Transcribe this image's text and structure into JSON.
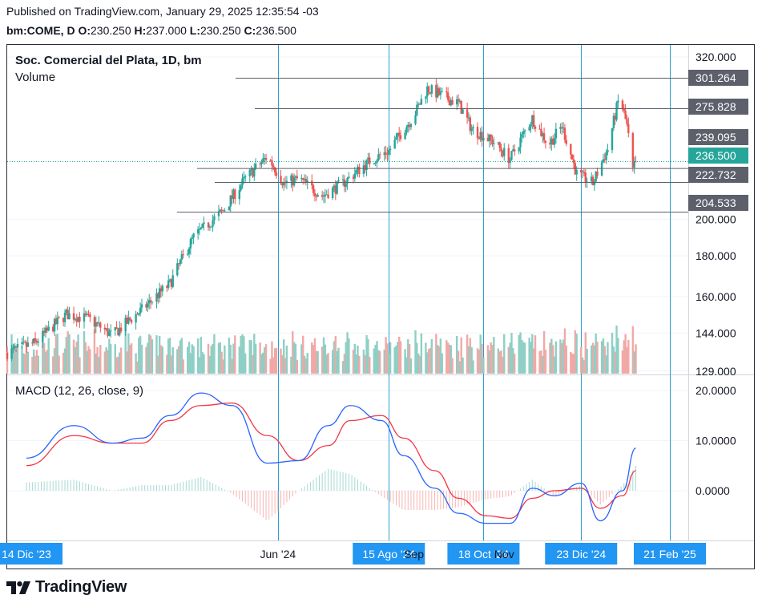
{
  "header": {
    "published": "Published on TradingView.com, January 29, 2025 12:35:54 -03",
    "symbol": "bm:COME, D",
    "ohlc": [
      {
        "k": "O:",
        "v": "230.250"
      },
      {
        "k": "H:",
        "v": "237.000"
      },
      {
        "k": "L:",
        "v": "230.250"
      },
      {
        "k": "C:",
        "v": "236.500"
      }
    ]
  },
  "legend": {
    "title": "Soc. Comercial del Plata, 1D, bm",
    "volume": "Volume",
    "macd": "MACD (12, 26, close, 9)"
  },
  "brand": {
    "name": "TradingView"
  },
  "colors": {
    "up": "#26a69a",
    "down": "#ef5350",
    "vol_up": "#8fcfc5",
    "vol_down": "#f0a9a6",
    "macd": "#2962ff",
    "signal": "#f23645",
    "vline": "#2a9fd0",
    "axis_tag": "#2196f3",
    "price_tag": "#5d606b",
    "last_tag": "#26a69a"
  },
  "chart_data": [
    {
      "type": "candlestick",
      "title": "Soc. Comercial del Plata, 1D, bm",
      "x_range": [
        "2023-12-01",
        "2025-03-01"
      ],
      "price_scale": "log",
      "y_ticks": [
        "320.000",
        "301.264",
        "275.828",
        "239.095",
        "236.500",
        "222.732",
        "204.533",
        "200.000",
        "180.000",
        "160.000",
        "144.000",
        "129.000"
      ],
      "levels": [
        {
          "value": 301.264,
          "label": "301.264"
        },
        {
          "value": 275.828,
          "label": "275.828"
        },
        {
          "value": 239.095,
          "label": "239.095"
        },
        {
          "value": 236.5,
          "label": "236.500",
          "last": true
        },
        {
          "value": 222.732,
          "label": "222.732"
        },
        {
          "value": 204.533,
          "label": "204.533"
        }
      ],
      "x_labels": [
        {
          "label": "14 Dic '23",
          "date": "2023-12-14",
          "tag": true
        },
        {
          "label": "Jun '24",
          "date": "2024-06-01",
          "tag": false
        },
        {
          "label": "15 Ago '24",
          "date": "2024-08-15",
          "tag": true
        },
        {
          "label": "Sep",
          "date": "2024-09-01",
          "tag": false
        },
        {
          "label": "18 Oct '24",
          "date": "2024-10-18",
          "tag": true
        },
        {
          "label": "Nov",
          "date": "2024-11-01",
          "tag": false
        },
        {
          "label": "23 Dic '24",
          "date": "2024-12-23",
          "tag": true
        },
        {
          "label": "21 Feb '25",
          "date": "2025-02-21",
          "tag": true
        }
      ],
      "vertical_lines": [
        "2024-06-01",
        "2024-08-15",
        "2024-10-18",
        "2024-12-23",
        "2025-02-21"
      ],
      "last_close": 236.5
    },
    {
      "type": "bar",
      "title": "Volume"
    },
    {
      "type": "line",
      "title": "MACD (12, 26, close, 9)",
      "y_ticks": [
        "20.0000",
        "10.0000",
        "0.0000"
      ],
      "ylim": [
        -8,
        22
      ],
      "series": [
        {
          "name": "MACD",
          "x": [
            "2023-12-14",
            "2024-01-15",
            "2024-02-10",
            "2024-03-01",
            "2024-03-20",
            "2024-04-10",
            "2024-05-01",
            "2024-05-25",
            "2024-06-15",
            "2024-07-05",
            "2024-07-20",
            "2024-08-10",
            "2024-08-25",
            "2024-09-15",
            "2024-10-01",
            "2024-10-20",
            "2024-11-05",
            "2024-11-20",
            "2024-12-05",
            "2024-12-23",
            "2025-01-05",
            "2025-01-20",
            "2025-01-29"
          ],
          "values": [
            6.5,
            13,
            9.5,
            10.5,
            15,
            19.5,
            17,
            5.5,
            6,
            13,
            17,
            14,
            7,
            0.5,
            -4.5,
            -6.5,
            -6.5,
            0.5,
            -1,
            1.5,
            -6,
            0,
            8.5
          ]
        },
        {
          "name": "Signal",
          "x": [
            "2023-12-14",
            "2024-01-15",
            "2024-02-10",
            "2024-03-01",
            "2024-03-20",
            "2024-04-10",
            "2024-05-01",
            "2024-05-25",
            "2024-06-15",
            "2024-07-05",
            "2024-07-20",
            "2024-08-10",
            "2024-08-25",
            "2024-09-15",
            "2024-10-01",
            "2024-10-20",
            "2024-11-05",
            "2024-11-20",
            "2024-12-05",
            "2024-12-23",
            "2025-01-05",
            "2025-01-20",
            "2025-01-29"
          ],
          "values": [
            5,
            11,
            9.5,
            9.5,
            14,
            17,
            17.5,
            11,
            6,
            9,
            14,
            15,
            10.5,
            4,
            -1.5,
            -5,
            -5.5,
            -1.5,
            0,
            0.5,
            -3.5,
            -1,
            4
          ]
        }
      ]
    }
  ]
}
